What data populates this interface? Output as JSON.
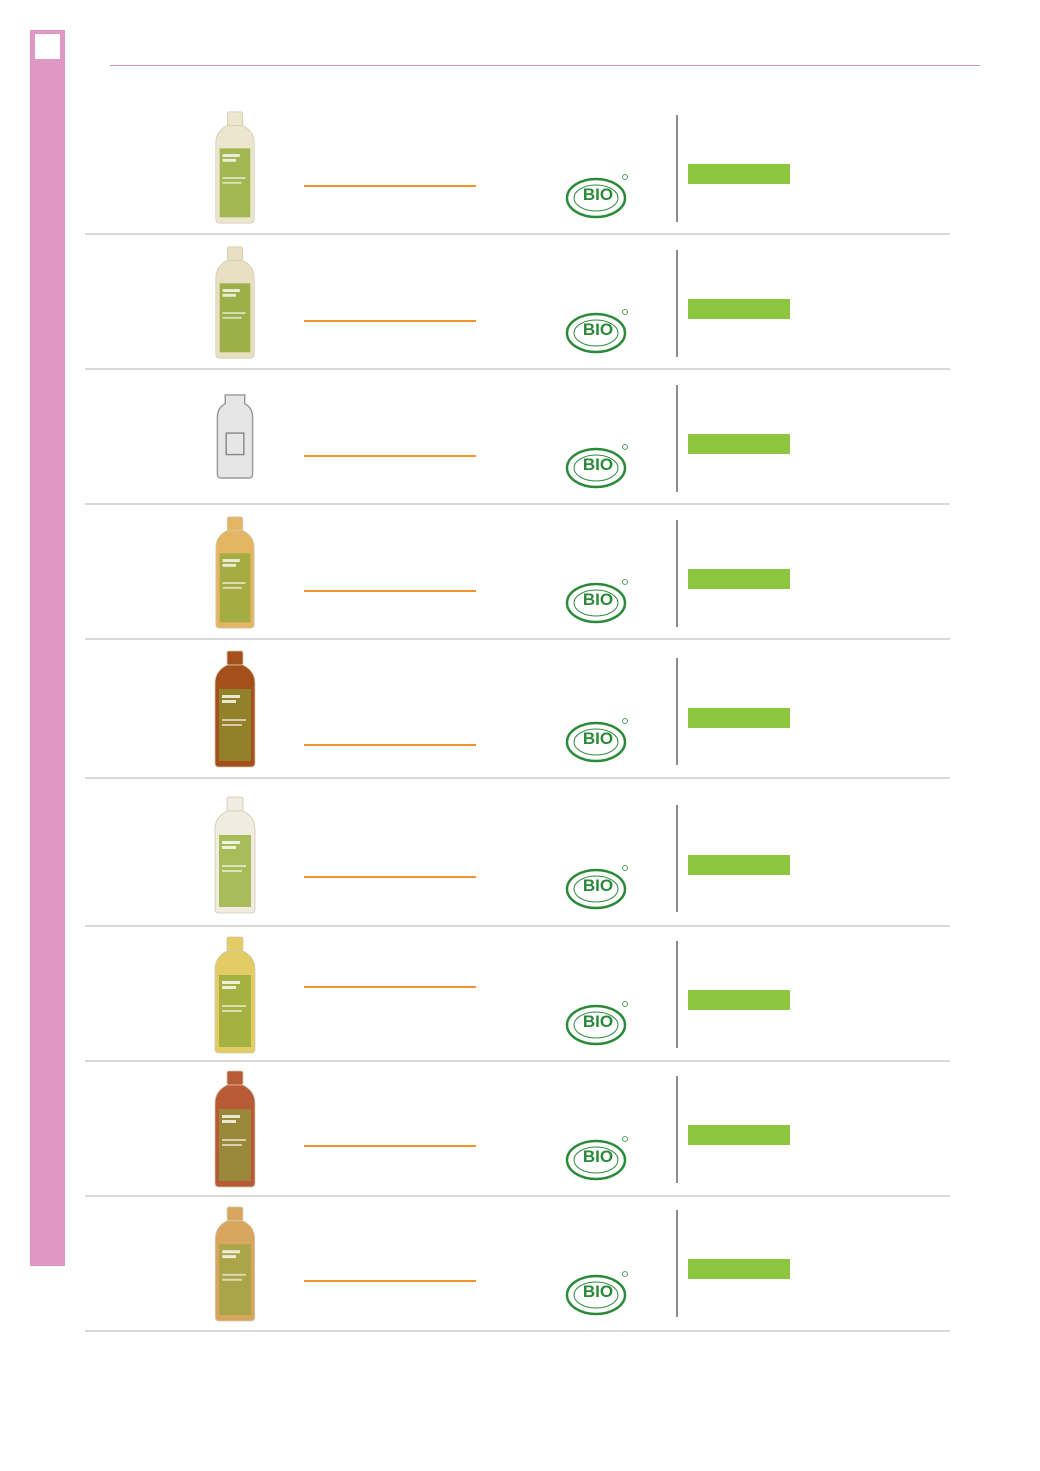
{
  "colors": {
    "sidebar": "#df98c4",
    "header_rule": "#d78fbe",
    "name_line": "#f0952b",
    "price_bar": "#8cc63f",
    "bio_green": "#2b8a3a"
  },
  "bio_logo": {
    "word": "BIO",
    "arc_top": "COSMETIQUE",
    "arc_bottom": "CHARTE COSMEBIO",
    "registered": "®"
  },
  "products": [
    {
      "bottle": "cream",
      "liquid": "#ede6cf",
      "label": "#97ad3c"
    },
    {
      "bottle": "cream",
      "liquid": "#e9e0c4",
      "label": "#8ea634"
    },
    {
      "bottle": "placeholder",
      "liquid": "#e6e6e6",
      "label": "#ffffff"
    },
    {
      "bottle": "amber",
      "liquid": "#e3b565",
      "label": "#9aaa3c"
    },
    {
      "bottle": "brown",
      "liquid": "#a5501c",
      "label": "#8f8a2c"
    },
    {
      "bottle": "white",
      "liquid": "#f0ece0",
      "label": "#9cb442"
    },
    {
      "bottle": "yellow",
      "liquid": "#e2cc63",
      "label": "#9aab3a"
    },
    {
      "bottle": "red-brown",
      "liquid": "#b85a35",
      "label": "#94913a"
    },
    {
      "bottle": "amber",
      "liquid": "#d8a65e",
      "label": "#a3a545"
    }
  ]
}
